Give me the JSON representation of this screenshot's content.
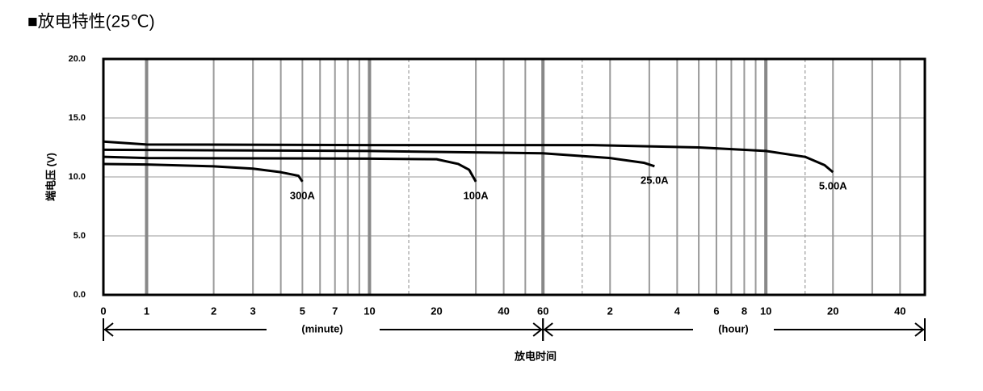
{
  "chart_data": {
    "type": "line",
    "title": "■放电特性(25℃)",
    "y_label": "端电压 (V)",
    "x_label": "放电时间",
    "x_unit_labels": [
      "(minute)",
      "(hour)"
    ],
    "log_x": true,
    "xlim": [
      0.64,
      3100
    ],
    "ylim": [
      0,
      20
    ],
    "yticks": [
      {
        "value": 0,
        "label": "0.0"
      },
      {
        "value": 5,
        "label": "5.0"
      },
      {
        "value": 10,
        "label": "10.0"
      },
      {
        "value": 15,
        "label": "15.0"
      },
      {
        "value": 20,
        "label": "20.0"
      }
    ],
    "xticks": [
      {
        "value": 0.64,
        "label": "0"
      },
      1,
      2,
      3,
      5,
      7,
      10,
      20,
      40,
      60,
      {
        "value": 120,
        "label": "2"
      },
      {
        "value": 240,
        "label": "4"
      },
      {
        "value": 360,
        "label": "6"
      },
      {
        "value": 480,
        "label": "8"
      },
      {
        "value": 600,
        "label": "10"
      },
      {
        "value": 1200,
        "label": "20"
      },
      {
        "value": 2400,
        "label": "40"
      }
    ],
    "xgrid_major": [
      1,
      10,
      60,
      600
    ],
    "xgrid_minor": [
      2,
      3,
      4,
      5,
      6,
      7,
      8,
      9,
      30,
      40,
      50,
      120,
      180,
      240,
      300,
      360,
      420,
      480,
      540,
      1200,
      1800,
      2400
    ],
    "xgrid_dashed": [
      15,
      90,
      900
    ],
    "grid": true,
    "series": [
      {
        "name": "300A",
        "color": "#000000",
        "x": [
          0.64,
          1,
          2,
          3,
          4,
          4.8,
          5
        ],
        "values": [
          11.1,
          11.05,
          10.9,
          10.7,
          10.4,
          10.1,
          9.6
        ]
      },
      {
        "name": "100A",
        "color": "#000000",
        "x": [
          0.64,
          1,
          10,
          20,
          25,
          28,
          30
        ],
        "values": [
          11.7,
          11.6,
          11.55,
          11.5,
          11.1,
          10.6,
          9.6
        ]
      },
      {
        "name": "25.0A",
        "color": "#000000",
        "x": [
          0.64,
          10,
          60,
          120,
          170,
          190
        ],
        "values": [
          12.3,
          12.2,
          12.0,
          11.6,
          11.2,
          10.9
        ]
      },
      {
        "name": "5.00A",
        "color": "#000000",
        "x": [
          0.64,
          1,
          10,
          100,
          300,
          600,
          900,
          1100,
          1200
        ],
        "values": [
          13.0,
          12.75,
          12.7,
          12.7,
          12.5,
          12.2,
          11.7,
          11.0,
          10.4
        ]
      }
    ]
  }
}
